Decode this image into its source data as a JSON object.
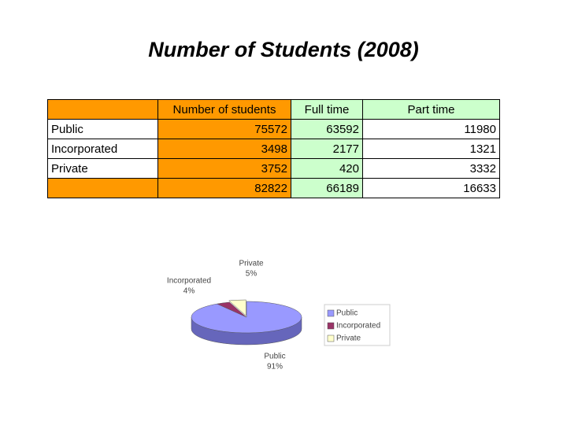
{
  "title": "Number of Students (2008)",
  "table": {
    "header": [
      "Number of students",
      "Full time",
      "Part time"
    ],
    "rows": [
      {
        "label": "Public",
        "values": [
          75572,
          63592,
          11980
        ]
      },
      {
        "label": "Incorporated",
        "values": [
          3498,
          2177,
          1321
        ]
      },
      {
        "label": "Private",
        "values": [
          3752,
          420,
          3332
        ]
      }
    ],
    "totals": [
      82822,
      66189,
      16633
    ]
  },
  "chart_data": {
    "type": "pie",
    "categories": [
      "Public",
      "Incorporated",
      "Private"
    ],
    "values": [
      91,
      4,
      5
    ],
    "value_labels": [
      "91%",
      "4%",
      "5%"
    ],
    "colors": [
      "#9999ff",
      "#993366",
      "#ffffcc"
    ],
    "legend": "right"
  }
}
